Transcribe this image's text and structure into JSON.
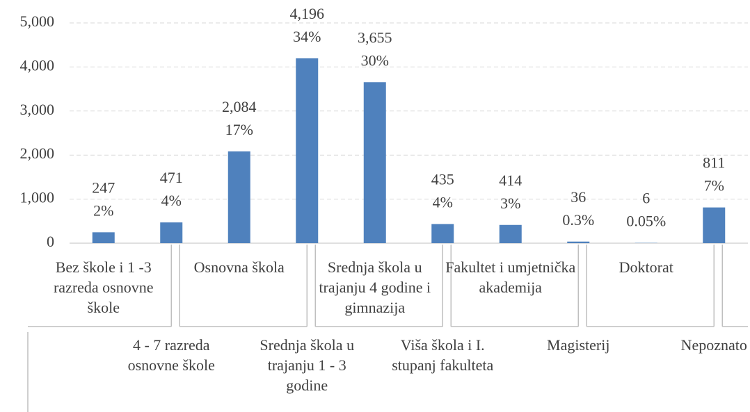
{
  "chart_data": {
    "type": "bar",
    "categories": [
      "Bez škole i 1 -3 razreda osnovne škole",
      "4 - 7 razreda osnovne škole",
      "Osnovna škola",
      "Srednja škola u trajanju 1 - 3 godine",
      "Srednja škola u trajanju 4 godine i gimnazija",
      "Viša škola i I. stupanj fakulteta",
      "Fakultet i umjetnička akademija",
      "Magisterij",
      "Doktorat",
      "Nepoznato"
    ],
    "values": [
      247,
      471,
      2084,
      4196,
      3655,
      435,
      414,
      36,
      6,
      811
    ],
    "value_labels": [
      "247",
      "471",
      "2,084",
      "4,196",
      "3,655",
      "435",
      "414",
      "36",
      "6",
      "811"
    ],
    "shares": [
      2,
      4,
      17,
      34,
      30,
      4,
      3,
      0.3,
      0.05,
      7
    ],
    "share_labels": [
      "2%",
      "4%",
      "17%",
      "34%",
      "30%",
      "4%",
      "3%",
      "0.3%",
      "0.05%",
      "7%"
    ],
    "color": "#4f81bd",
    "ylim": [
      0,
      5000
    ],
    "yticks": [
      0,
      {
        "value": 1000,
        "label": "1,000"
      },
      {
        "value": 2000,
        "label": "2,000"
      },
      {
        "value": 3000,
        "label": "3,000"
      },
      {
        "value": 4000,
        "label": "4,000"
      },
      {
        "value": 5000,
        "label": "5,000"
      }
    ],
    "grid": true
  }
}
